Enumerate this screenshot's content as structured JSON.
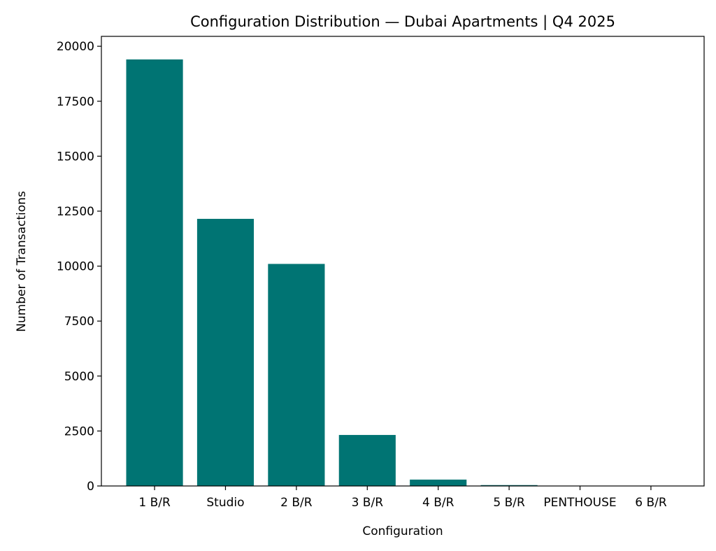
{
  "chart_data": {
    "type": "bar",
    "title": "Configuration Distribution — Dubai Apartments | Q4 2025",
    "x_label": "Configuration",
    "y_label": "Number of Transactions",
    "categories": [
      "1 B/R",
      "Studio",
      "2 B/R",
      "3 B/R",
      "4 B/R",
      "5 B/R",
      "PENTHOUSE",
      "6 B/R"
    ],
    "values": [
      19400,
      12150,
      10100,
      2320,
      290,
      40,
      5,
      3
    ],
    "color": "#007473",
    "ylim": [
      0,
      20450
    ],
    "yticks": [
      0,
      2500,
      5000,
      7500,
      10000,
      12500,
      15000,
      17500,
      20000
    ],
    "grid": false
  }
}
